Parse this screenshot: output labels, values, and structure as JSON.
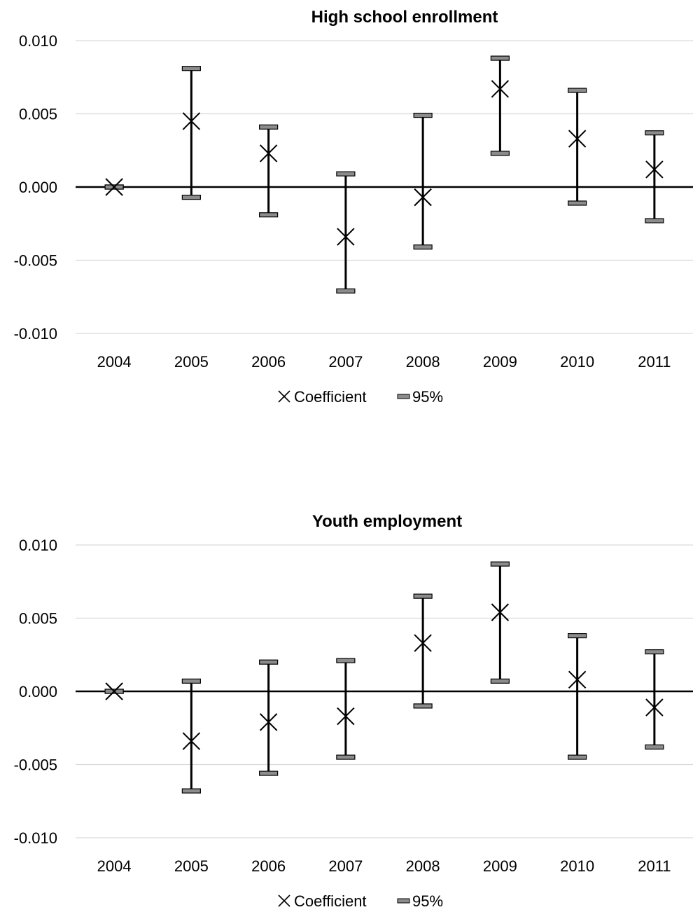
{
  "chart_data": [
    {
      "type": "scatter",
      "title": "High school enrollment",
      "categories": [
        "2004",
        "2005",
        "2006",
        "2007",
        "2008",
        "2009",
        "2010",
        "2011"
      ],
      "y_ticks": [
        "0.010",
        "0.005",
        "0.000",
        "-0.005",
        "-0.010"
      ],
      "ylim": [
        -0.01,
        0.01
      ],
      "grid": true,
      "legend_position": "bottom",
      "legend": [
        "Coefficient",
        "95%"
      ],
      "series": [
        {
          "name": "Coefficient",
          "values": [
            0.0,
            0.0045,
            0.0023,
            -0.0034,
            -0.0007,
            0.0067,
            0.0033,
            0.0012
          ]
        },
        {
          "name": "95%",
          "lower": [
            0.0,
            -0.0007,
            -0.0019,
            -0.0071,
            -0.0041,
            0.0023,
            -0.0011,
            -0.0023
          ],
          "upper": [
            0.0,
            0.0081,
            0.0041,
            0.0009,
            0.0049,
            0.0088,
            0.0066,
            0.0037
          ]
        }
      ]
    },
    {
      "type": "scatter",
      "title": "Youth employment",
      "categories": [
        "2004",
        "2005",
        "2006",
        "2007",
        "2008",
        "2009",
        "2010",
        "2011"
      ],
      "y_ticks": [
        "0.010",
        "0.005",
        "0.000",
        "-0.005",
        "-0.010"
      ],
      "ylim": [
        -0.01,
        0.01
      ],
      "grid": true,
      "legend_position": "bottom",
      "legend": [
        "Coefficient",
        "95%"
      ],
      "series": [
        {
          "name": "Coefficient",
          "values": [
            0.0,
            -0.0034,
            -0.0021,
            -0.0017,
            0.0033,
            0.0054,
            0.0008,
            -0.0011
          ]
        },
        {
          "name": "95%",
          "lower": [
            0.0,
            -0.0068,
            -0.0056,
            -0.0045,
            -0.001,
            0.0007,
            -0.0045,
            -0.0038
          ],
          "upper": [
            0.0,
            0.0007,
            0.002,
            0.0021,
            0.0065,
            0.0087,
            0.0038,
            0.0027
          ]
        }
      ]
    }
  ]
}
